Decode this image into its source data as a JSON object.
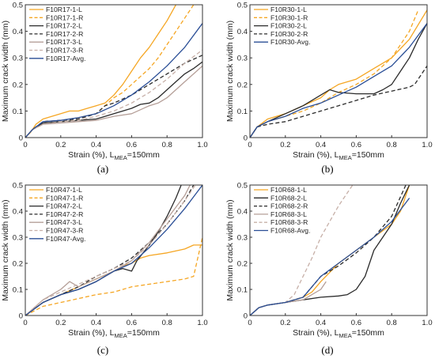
{
  "chart_data": [
    {
      "type": "line",
      "caption": "(a)",
      "xlabel_main": "Strain (%), L",
      "xlabel_sub": "MEA",
      "xlabel_tail": "=150mm",
      "ylabel": "Maximum crack width (mm)",
      "xlim": [
        0,
        1.0
      ],
      "ylim": [
        0,
        0.5
      ],
      "xticks": [
        "0",
        "0.2",
        "0.4",
        "0.6",
        "0.8",
        "1.0"
      ],
      "yticks": [
        "0",
        "0.1",
        "0.2",
        "0.3",
        "0.4",
        "0.5"
      ],
      "legend_position": "top-left",
      "series": [
        {
          "name": "F10R17-1-L",
          "color": "#f5a623",
          "dash": "solid",
          "x": [
            0,
            0.03,
            0.06,
            0.1,
            0.15,
            0.2,
            0.25,
            0.3,
            0.35,
            0.4,
            0.45,
            0.5,
            0.55,
            0.6,
            0.65,
            0.7,
            0.75,
            0.8,
            0.85
          ],
          "y": [
            0,
            0.02,
            0.05,
            0.07,
            0.08,
            0.09,
            0.1,
            0.1,
            0.11,
            0.12,
            0.13,
            0.16,
            0.2,
            0.25,
            0.3,
            0.34,
            0.39,
            0.44,
            0.5
          ]
        },
        {
          "name": "F10R17-1-R",
          "color": "#f5a623",
          "dash": "dash",
          "x": [
            0,
            0.04,
            0.1,
            0.2,
            0.3,
            0.4,
            0.45,
            0.5,
            0.55,
            0.6,
            0.65,
            0.7,
            0.75,
            0.8,
            0.85,
            0.9,
            0.95
          ],
          "y": [
            0,
            0.03,
            0.06,
            0.065,
            0.075,
            0.09,
            0.12,
            0.15,
            0.17,
            0.2,
            0.23,
            0.26,
            0.3,
            0.35,
            0.4,
            0.45,
            0.5
          ]
        },
        {
          "name": "F10R17-2-L",
          "color": "#2b2b2b",
          "dash": "solid",
          "x": [
            0,
            0.04,
            0.1,
            0.2,
            0.3,
            0.4,
            0.5,
            0.6,
            0.65,
            0.7,
            0.75,
            0.8,
            0.85,
            0.9,
            0.95,
            1.0
          ],
          "y": [
            0,
            0.03,
            0.055,
            0.06,
            0.065,
            0.07,
            0.09,
            0.11,
            0.125,
            0.13,
            0.15,
            0.18,
            0.21,
            0.24,
            0.26,
            0.285
          ]
        },
        {
          "name": "F10R17-2-R",
          "color": "#2b2b2b",
          "dash": "dash",
          "x": [
            0,
            0.04,
            0.1,
            0.2,
            0.3,
            0.4,
            0.45,
            0.5,
            0.6,
            0.7,
            0.8,
            0.9,
            1.0
          ],
          "y": [
            0,
            0.03,
            0.06,
            0.065,
            0.07,
            0.09,
            0.12,
            0.13,
            0.16,
            0.2,
            0.24,
            0.28,
            0.31
          ]
        },
        {
          "name": "F10R17-3-L",
          "color": "#b59f98",
          "dash": "solid",
          "x": [
            0,
            0.04,
            0.1,
            0.2,
            0.3,
            0.4,
            0.5,
            0.6,
            0.7,
            0.75,
            0.8,
            0.85,
            0.9,
            0.95,
            1.0
          ],
          "y": [
            0,
            0.03,
            0.05,
            0.055,
            0.06,
            0.065,
            0.08,
            0.09,
            0.12,
            0.13,
            0.15,
            0.18,
            0.21,
            0.24,
            0.27
          ]
        },
        {
          "name": "F10R17-3-R",
          "color": "#c7b0a8",
          "dash": "dash",
          "x": [
            0,
            0.04,
            0.1,
            0.2,
            0.3,
            0.4,
            0.5,
            0.6,
            0.65,
            0.7,
            0.8,
            0.9,
            1.0
          ],
          "y": [
            0,
            0.03,
            0.05,
            0.06,
            0.065,
            0.08,
            0.1,
            0.13,
            0.15,
            0.17,
            0.22,
            0.28,
            0.33
          ]
        },
        {
          "name": "F10R17-Avg.",
          "color": "#2a4e96",
          "dash": "solid",
          "x": [
            0,
            0.04,
            0.1,
            0.2,
            0.3,
            0.4,
            0.5,
            0.6,
            0.7,
            0.8,
            0.9,
            1.0
          ],
          "y": [
            0,
            0.03,
            0.06,
            0.065,
            0.075,
            0.09,
            0.12,
            0.16,
            0.21,
            0.27,
            0.34,
            0.43
          ]
        }
      ]
    },
    {
      "type": "line",
      "caption": "(b)",
      "xlabel_main": "Strain (%), L",
      "xlabel_sub": "MEA",
      "xlabel_tail": "=150mm",
      "ylabel": "Maximum crack width (mm)",
      "xlim": [
        0,
        1.0
      ],
      "ylim": [
        0,
        0.5
      ],
      "xticks": [
        "0",
        "0.2",
        "0.4",
        "0.6",
        "0.8",
        "1.0"
      ],
      "yticks": [
        "0",
        "0.1",
        "0.2",
        "0.3",
        "0.4",
        "0.5"
      ],
      "legend_position": "top-left",
      "series": [
        {
          "name": "F10R30-1-L",
          "color": "#f5a623",
          "dash": "solid",
          "x": [
            0,
            0.04,
            0.1,
            0.2,
            0.3,
            0.4,
            0.45,
            0.5,
            0.6,
            0.7,
            0.75,
            0.8,
            0.9,
            1.0
          ],
          "y": [
            0,
            0.04,
            0.07,
            0.09,
            0.12,
            0.15,
            0.18,
            0.2,
            0.22,
            0.26,
            0.28,
            0.3,
            0.37,
            0.48
          ]
        },
        {
          "name": "F10R30-1-R",
          "color": "#f5a623",
          "dash": "dash",
          "x": [
            0,
            0.04,
            0.1,
            0.2,
            0.3,
            0.4,
            0.5,
            0.6,
            0.7,
            0.8,
            0.9,
            0.95
          ],
          "y": [
            0,
            0.04,
            0.06,
            0.08,
            0.1,
            0.13,
            0.17,
            0.2,
            0.24,
            0.3,
            0.4,
            0.48
          ]
        },
        {
          "name": "F10R30-2-L",
          "color": "#2b2b2b",
          "dash": "solid",
          "x": [
            0,
            0.04,
            0.1,
            0.2,
            0.3,
            0.4,
            0.45,
            0.5,
            0.6,
            0.7,
            0.75,
            0.8,
            0.85,
            0.9,
            0.95,
            1.0
          ],
          "y": [
            0,
            0.04,
            0.06,
            0.09,
            0.12,
            0.16,
            0.18,
            0.17,
            0.165,
            0.165,
            0.18,
            0.2,
            0.25,
            0.3,
            0.37,
            0.43
          ]
        },
        {
          "name": "F10R30-2-R",
          "color": "#2b2b2b",
          "dash": "dash",
          "x": [
            0,
            0.04,
            0.1,
            0.2,
            0.3,
            0.4,
            0.5,
            0.6,
            0.7,
            0.8,
            0.9,
            0.93,
            1.0
          ],
          "y": [
            0,
            0.04,
            0.05,
            0.06,
            0.08,
            0.1,
            0.12,
            0.14,
            0.16,
            0.175,
            0.19,
            0.2,
            0.27
          ]
        },
        {
          "name": "F10R30-Avg.",
          "color": "#2a4e96",
          "dash": "solid",
          "x": [
            0,
            0.04,
            0.1,
            0.2,
            0.3,
            0.4,
            0.5,
            0.6,
            0.7,
            0.8,
            0.9,
            1.0
          ],
          "y": [
            0,
            0.04,
            0.06,
            0.08,
            0.11,
            0.13,
            0.16,
            0.19,
            0.23,
            0.27,
            0.34,
            0.43
          ]
        }
      ]
    },
    {
      "type": "line",
      "caption": "(c)",
      "xlabel_main": "Strain (%), L",
      "xlabel_sub": "MEA",
      "xlabel_tail": "=150mm",
      "ylabel": "Maximum crack width (mm)",
      "xlim": [
        0,
        1.0
      ],
      "ylim": [
        0,
        0.5
      ],
      "xticks": [
        "0",
        "0.2",
        "0.4",
        "0.6",
        "0.8",
        "1.0"
      ],
      "yticks": [
        "0",
        "0.1",
        "0.2",
        "0.3",
        "0.4",
        "0.5"
      ],
      "legend_position": "top-left",
      "series": [
        {
          "name": "F10R47-1-L",
          "color": "#f5a623",
          "dash": "solid",
          "x": [
            0,
            0.1,
            0.2,
            0.3,
            0.4,
            0.5,
            0.55,
            0.6,
            0.65,
            0.7,
            0.8,
            0.9,
            0.95,
            1.0
          ],
          "y": [
            0,
            0.05,
            0.08,
            0.11,
            0.14,
            0.17,
            0.19,
            0.2,
            0.22,
            0.23,
            0.24,
            0.255,
            0.27,
            0.27
          ]
        },
        {
          "name": "F10R47-1-R",
          "color": "#f5a623",
          "dash": "dash",
          "x": [
            0,
            0.1,
            0.2,
            0.3,
            0.4,
            0.5,
            0.6,
            0.7,
            0.8,
            0.9,
            0.95,
            1.0
          ],
          "y": [
            0,
            0.035,
            0.05,
            0.065,
            0.08,
            0.09,
            0.11,
            0.12,
            0.13,
            0.14,
            0.15,
            0.3
          ]
        },
        {
          "name": "F10R47-2-L",
          "color": "#2b2b2b",
          "dash": "solid",
          "x": [
            0,
            0.1,
            0.2,
            0.3,
            0.4,
            0.5,
            0.55,
            0.6,
            0.63,
            0.7,
            0.75,
            0.8,
            0.85,
            0.88
          ],
          "y": [
            0,
            0.05,
            0.08,
            0.1,
            0.13,
            0.17,
            0.18,
            0.17,
            0.21,
            0.27,
            0.32,
            0.38,
            0.45,
            0.5
          ]
        },
        {
          "name": "F10R47-2-R",
          "color": "#2b2b2b",
          "dash": "dash",
          "x": [
            0,
            0.1,
            0.2,
            0.3,
            0.4,
            0.5,
            0.6,
            0.7,
            0.8,
            0.9,
            0.95
          ],
          "y": [
            0,
            0.05,
            0.08,
            0.11,
            0.15,
            0.18,
            0.22,
            0.28,
            0.35,
            0.44,
            0.5
          ]
        },
        {
          "name": "F10R47-3-L",
          "color": "#b59f98",
          "dash": "solid",
          "x": [
            0,
            0.1,
            0.2,
            0.25,
            0.3,
            0.4,
            0.5,
            0.6,
            0.7,
            0.8,
            0.9,
            0.93
          ],
          "y": [
            0,
            0.06,
            0.1,
            0.13,
            0.11,
            0.14,
            0.17,
            0.21,
            0.28,
            0.37,
            0.46,
            0.5
          ]
        },
        {
          "name": "F10R47-3-R",
          "color": "#c7b0a8",
          "dash": "dash",
          "x": [
            0,
            0.1,
            0.2,
            0.3,
            0.4,
            0.5,
            0.6,
            0.7,
            0.8,
            0.9,
            0.96
          ],
          "y": [
            0,
            0.06,
            0.09,
            0.12,
            0.15,
            0.18,
            0.21,
            0.27,
            0.35,
            0.44,
            0.5
          ]
        },
        {
          "name": "F10R47-Avg.",
          "color": "#2a4e96",
          "dash": "solid",
          "x": [
            0,
            0.1,
            0.2,
            0.3,
            0.4,
            0.5,
            0.6,
            0.7,
            0.8,
            0.9,
            1.0
          ],
          "y": [
            0,
            0.05,
            0.08,
            0.1,
            0.13,
            0.17,
            0.2,
            0.26,
            0.33,
            0.41,
            0.5
          ]
        }
      ]
    },
    {
      "type": "line",
      "caption": "(d)",
      "xlabel_main": "Strain (%), L",
      "xlabel_sub": "MEA",
      "xlabel_tail": "=150mm",
      "ylabel": "Maximum crack width (mm)",
      "xlim": [
        0,
        1.0
      ],
      "ylim": [
        0,
        0.5
      ],
      "xticks": [
        "0",
        "0.2",
        "0.4",
        "0.6",
        "0.8",
        "1.0"
      ],
      "yticks": [
        "0",
        "0.1",
        "0.2",
        "0.3",
        "0.4",
        "0.5"
      ],
      "legend_position": "top-left",
      "series": [
        {
          "name": "F10R68-1-L",
          "color": "#f5a623",
          "dash": "solid",
          "x": [
            0,
            0.05,
            0.1,
            0.2,
            0.3,
            0.35,
            0.4,
            0.5,
            0.6,
            0.7,
            0.8,
            0.85,
            0.9
          ],
          "y": [
            0,
            0.03,
            0.04,
            0.05,
            0.07,
            0.09,
            0.13,
            0.2,
            0.25,
            0.3,
            0.35,
            0.4,
            0.5
          ]
        },
        {
          "name": "F10R68-2-L",
          "color": "#2b2b2b",
          "dash": "solid",
          "x": [
            0,
            0.05,
            0.1,
            0.2,
            0.3,
            0.4,
            0.5,
            0.55,
            0.6,
            0.65,
            0.7,
            0.8,
            0.85,
            0.9
          ],
          "y": [
            0,
            0.03,
            0.04,
            0.05,
            0.06,
            0.07,
            0.075,
            0.08,
            0.1,
            0.15,
            0.25,
            0.35,
            0.43,
            0.5
          ]
        },
        {
          "name": "F10R68-2-R",
          "color": "#2b2b2b",
          "dash": "dash",
          "x": [
            0,
            0.05,
            0.1,
            0.2,
            0.3,
            0.4,
            0.5,
            0.6,
            0.7,
            0.8,
            0.88
          ],
          "y": [
            0,
            0.03,
            0.04,
            0.05,
            0.07,
            0.15,
            0.19,
            0.24,
            0.3,
            0.38,
            0.5
          ]
        },
        {
          "name": "F10R68-3-L",
          "color": "#b59f98",
          "dash": "solid",
          "x": [
            0,
            0.05,
            0.1,
            0.2,
            0.3,
            0.35,
            0.4,
            0.43
          ],
          "y": [
            0,
            0.03,
            0.04,
            0.05,
            0.06,
            0.08,
            0.1,
            0.13
          ]
        },
        {
          "name": "F10R68-3-R",
          "color": "#c7b0a8",
          "dash": "dash",
          "x": [
            0,
            0.05,
            0.1,
            0.2,
            0.25,
            0.3,
            0.35,
            0.4,
            0.5,
            0.58
          ],
          "y": [
            0,
            0.03,
            0.04,
            0.05,
            0.08,
            0.15,
            0.22,
            0.3,
            0.42,
            0.5
          ]
        },
        {
          "name": "F10R68-Avg.",
          "color": "#2a4e96",
          "dash": "solid",
          "x": [
            0,
            0.05,
            0.1,
            0.2,
            0.3,
            0.4,
            0.5,
            0.6,
            0.7,
            0.8,
            0.9
          ],
          "y": [
            0,
            0.03,
            0.04,
            0.05,
            0.07,
            0.15,
            0.2,
            0.25,
            0.3,
            0.36,
            0.45
          ]
        }
      ]
    }
  ]
}
